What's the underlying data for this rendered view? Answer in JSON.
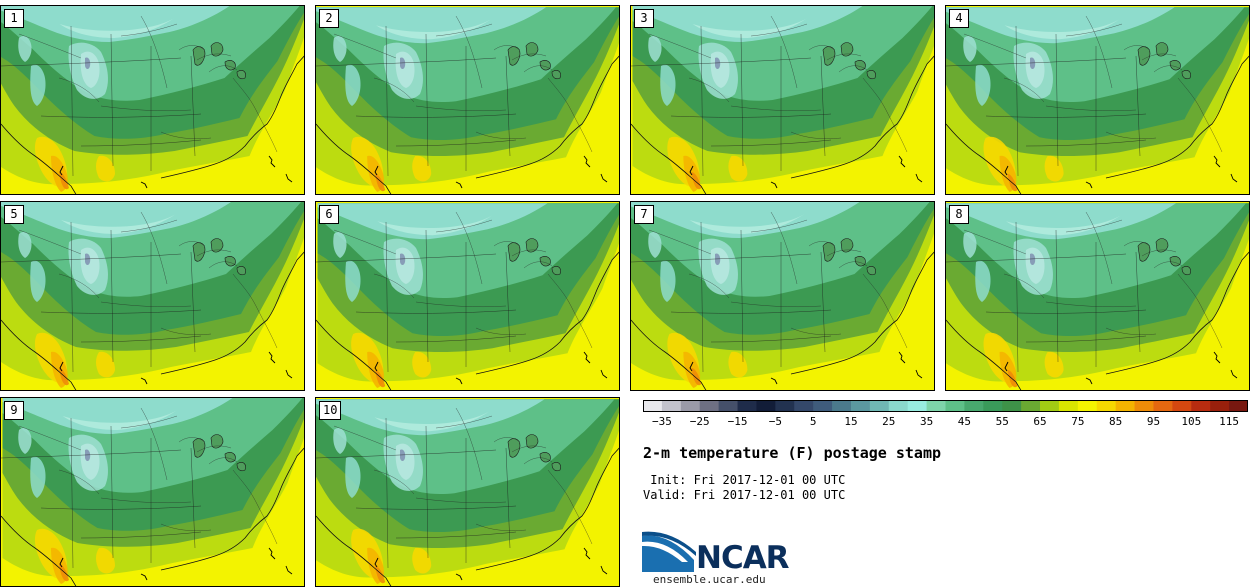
{
  "members": [
    {
      "label": "1"
    },
    {
      "label": "2"
    },
    {
      "label": "3"
    },
    {
      "label": "4"
    },
    {
      "label": "5"
    },
    {
      "label": "6"
    },
    {
      "label": "7"
    },
    {
      "label": "8"
    },
    {
      "label": "9"
    },
    {
      "label": "10"
    }
  ],
  "colorbar": {
    "min": -40,
    "max": 120,
    "step": 5,
    "colors": [
      "#e8e8ec",
      "#c3c3cc",
      "#9a9aa8",
      "#6e7083",
      "#45506a",
      "#1f2c4a",
      "#121d38",
      "#223250",
      "#34486a",
      "#3f5c7c",
      "#4b7a8c",
      "#5b98a0",
      "#70b8b4",
      "#8ad8cc",
      "#98ece0",
      "#7ed4aa",
      "#5ec088",
      "#48a86e",
      "#3a9a5a",
      "#3e9248",
      "#6aaa32",
      "#a2cc14",
      "#d8e600",
      "#f4f400",
      "#f6d800",
      "#f4b400",
      "#ee8c08",
      "#e46810",
      "#d44810",
      "#b82c10",
      "#98200c",
      "#781810"
    ],
    "tick_values": [
      -35,
      -25,
      -15,
      -5,
      5,
      15,
      25,
      35,
      45,
      55,
      65,
      75,
      85,
      95,
      105,
      115
    ],
    "tick_labels": [
      "−35",
      "−25",
      "−15",
      "−5",
      "5",
      "15",
      "25",
      "35",
      "45",
      "55",
      "65",
      "75",
      "85",
      "95",
      "105",
      "115"
    ]
  },
  "title": "2-m temperature (F) postage stamp",
  "init_label": " Init: Fri 2017-12-01 00 UTC",
  "valid_label": "Valid: Fri 2017-12-01 00 UTC",
  "logo_text": "NCAR",
  "site_url": "ensemble.ucar.edu"
}
